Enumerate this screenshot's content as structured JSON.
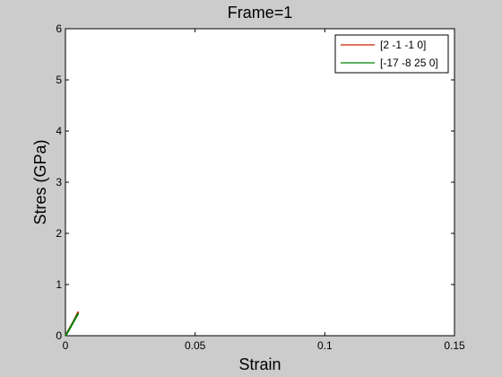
{
  "chart_data": {
    "type": "line",
    "title": "Frame=1",
    "xlabel": "Strain",
    "ylabel": "Stres (GPa)",
    "xlim": [
      0,
      0.15
    ],
    "ylim": [
      0,
      6
    ],
    "x_ticks": [
      0,
      0.05,
      0.1,
      0.15
    ],
    "x_tick_labels": [
      "0",
      "0.05",
      "0.1",
      "0.15"
    ],
    "y_ticks": [
      0,
      1,
      2,
      3,
      4,
      5,
      6
    ],
    "y_tick_labels": [
      "0",
      "1",
      "2",
      "3",
      "4",
      "5",
      "6"
    ],
    "grid": false,
    "legend_position": "top-right",
    "series": [
      {
        "name": "[2 -1 -1 0]",
        "color": "#cc2200",
        "x": [
          0,
          0.001,
          0.002,
          0.003,
          0.004,
          0.005
        ],
        "y": [
          0,
          0.09,
          0.18,
          0.27,
          0.37,
          0.47
        ]
      },
      {
        "name": "[-17 -8 25 0]",
        "color": "#008000",
        "x": [
          0,
          0.001,
          0.002,
          0.003,
          0.004,
          0.005
        ],
        "y": [
          0,
          0.08,
          0.17,
          0.26,
          0.35,
          0.44
        ]
      }
    ]
  },
  "colors": {
    "figure_background": "#cccccc",
    "axes_background": "#ffffff",
    "axes_line": "#000000"
  }
}
